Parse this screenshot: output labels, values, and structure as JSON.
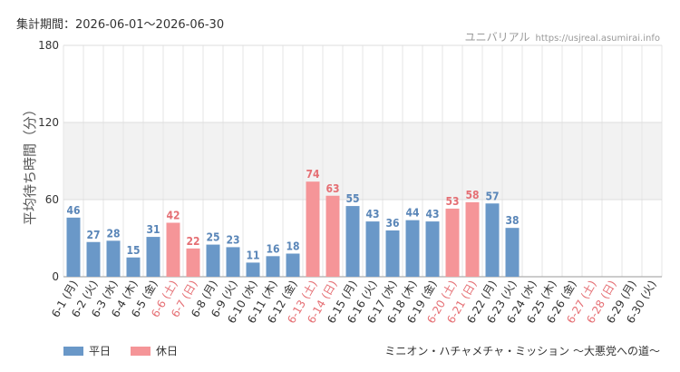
{
  "period_text": "集計期間：2026-06-01～2026-06-30",
  "brand": {
    "name": "ユニバリアル",
    "url": "https://usjreal.asumirai.info"
  },
  "footer_text": "ミニオン・ハチャメチャ・ミッション ～大悪党への道～",
  "colors": {
    "weekday": "#6a98c8",
    "holiday": "#f59598",
    "weekday_label": "#5a86b8",
    "holiday_label": "#e56f74",
    "band": "#f2f2f2",
    "grid": "#e6e6e6"
  },
  "chart_data": {
    "type": "bar",
    "title": "",
    "xlabel": "",
    "ylabel": "平均待ち時間（分）",
    "ylim": [
      0,
      180
    ],
    "yticks": [
      0,
      60,
      120,
      180
    ],
    "shaded_band": [
      60,
      120
    ],
    "legend_position": "bottom-left",
    "categories": [
      "6-1 (月)",
      "6-2 (火)",
      "6-3 (水)",
      "6-4 (木)",
      "6-5 (金)",
      "6-6 (土)",
      "6-7 (日)",
      "6-8 (月)",
      "6-9 (火)",
      "6-10 (水)",
      "6-11 (木)",
      "6-12 (金)",
      "6-13 (土)",
      "6-14 (日)",
      "6-15 (月)",
      "6-16 (火)",
      "6-17 (水)",
      "6-18 (木)",
      "6-19 (金)",
      "6-20 (土)",
      "6-21 (日)",
      "6-22 (月)",
      "6-23 (火)",
      "6-24 (水)",
      "6-25 (木)",
      "6-26 (金)",
      "6-27 (土)",
      "6-28 (日)",
      "6-29 (月)",
      "6-30 (火)"
    ],
    "values": [
      46,
      27,
      28,
      15,
      31,
      42,
      22,
      25,
      23,
      11,
      16,
      18,
      74,
      63,
      55,
      43,
      36,
      44,
      43,
      53,
      58,
      57,
      38,
      null,
      null,
      null,
      null,
      null,
      null,
      null
    ],
    "holiday": [
      false,
      false,
      false,
      false,
      false,
      true,
      true,
      false,
      false,
      false,
      false,
      false,
      true,
      true,
      false,
      false,
      false,
      false,
      false,
      true,
      true,
      false,
      false,
      false,
      false,
      false,
      true,
      true,
      false,
      false
    ],
    "series": [
      {
        "name": "平日",
        "color": "#6a98c8"
      },
      {
        "name": "休日",
        "color": "#f59598"
      }
    ]
  }
}
